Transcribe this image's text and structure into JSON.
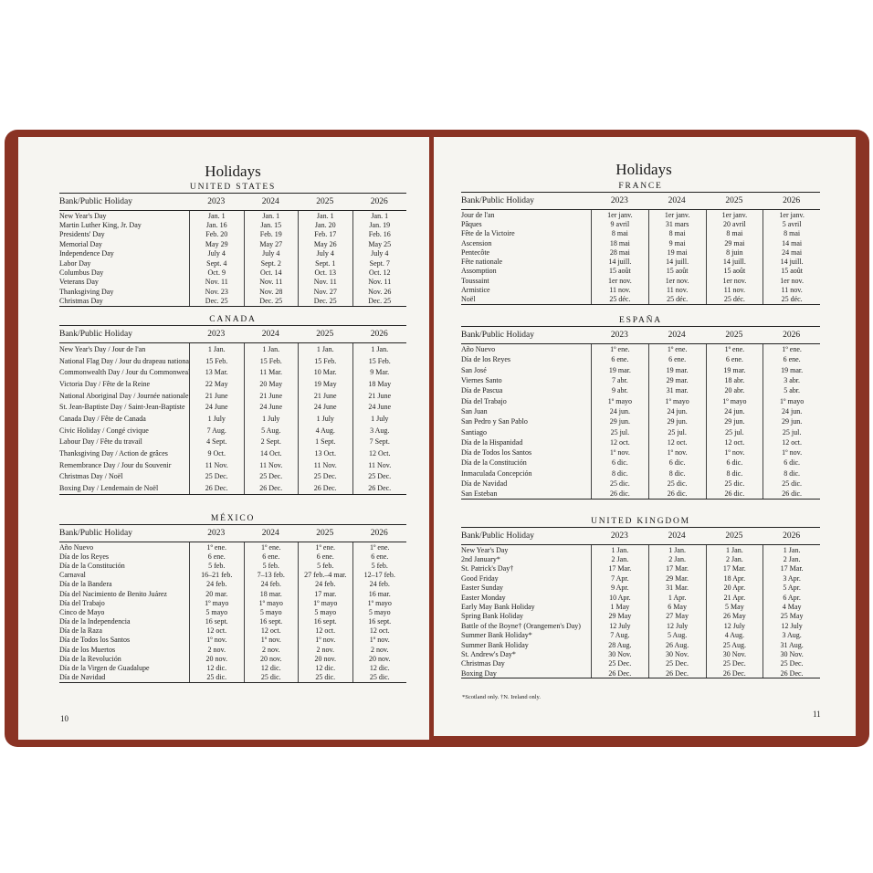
{
  "pages": [
    {
      "title": "Holidays",
      "page_number": "10",
      "sections": [
        {
          "country": "UNITED STATES",
          "column_header": "Bank/Public Holiday",
          "years": [
            "2023",
            "2024",
            "2025",
            "2026"
          ],
          "rows": [
            [
              "New Year's Day",
              "Jan. 1",
              "Jan. 1",
              "Jan. 1",
              "Jan. 1"
            ],
            [
              "Martin Luther King, Jr. Day",
              "Jan. 16",
              "Jan. 15",
              "Jan. 20",
              "Jan. 19"
            ],
            [
              "Presidents' Day",
              "Feb. 20",
              "Feb. 19",
              "Feb. 17",
              "Feb. 16"
            ],
            [
              "Memorial Day",
              "May 29",
              "May 27",
              "May 26",
              "May 25"
            ],
            [
              "Independence Day",
              "July 4",
              "July 4",
              "July 4",
              "July 4"
            ],
            [
              "Labor Day",
              "Sept. 4",
              "Sept. 2",
              "Sept. 1",
              "Sept. 7"
            ],
            [
              "Columbus Day",
              "Oct. 9",
              "Oct. 14",
              "Oct. 13",
              "Oct. 12"
            ],
            [
              "Veterans Day",
              "Nov. 11",
              "Nov. 11",
              "Nov. 11",
              "Nov. 11"
            ],
            [
              "Thanksgiving Day",
              "Nov. 23",
              "Nov. 28",
              "Nov. 27",
              "Nov. 26"
            ],
            [
              "Christmas Day",
              "Dec. 25",
              "Dec. 25",
              "Dec. 25",
              "Dec. 25"
            ]
          ]
        },
        {
          "country": "CANADA",
          "column_header": "Bank/Public Holiday",
          "years": [
            "2023",
            "2024",
            "2025",
            "2026"
          ],
          "rows": [
            [
              "New Year's Day / Jour de l'an",
              "1 Jan.",
              "1 Jan.",
              "1 Jan.",
              "1 Jan."
            ],
            [
              "National Flag Day / Jour du drapeau national",
              "15 Feb.",
              "15 Feb.",
              "15 Feb.",
              "15 Feb."
            ],
            [
              "Commonwealth Day / Jour du Commonwealth",
              "13 Mar.",
              "11 Mar.",
              "10 Mar.",
              "9 Mar."
            ],
            [
              "Victoria Day / Fête de la Reine",
              "22 May",
              "20 May",
              "19 May",
              "18 May"
            ],
            [
              "National Aboriginal Day / Journée nationale des Autochtones",
              "21 June",
              "21 June",
              "21 June",
              "21 June"
            ],
            [
              "St. Jean-Baptiste Day / Saint-Jean-Baptiste",
              "24 June",
              "24 June",
              "24 June",
              "24 June"
            ],
            [
              "Canada Day / Fête de Canada",
              "1 July",
              "1 July",
              "1 July",
              "1 July"
            ],
            [
              "Civic Holiday / Congé civique",
              "7 Aug.",
              "5 Aug.",
              "4 Aug.",
              "3 Aug."
            ],
            [
              "Labour Day / Fête du travail",
              "4 Sept.",
              "2 Sept.",
              "1 Sept.",
              "7 Sept."
            ],
            [
              "Thanksgiving Day / Action de grâces",
              "9 Oct.",
              "14 Oct.",
              "13 Oct.",
              "12 Oct."
            ],
            [
              "Remembrance Day / Jour du Souvenir",
              "11 Nov.",
              "11 Nov.",
              "11 Nov.",
              "11 Nov."
            ],
            [
              "Christmas Day / Noël",
              "25 Dec.",
              "25 Dec.",
              "25 Dec.",
              "25 Dec."
            ],
            [
              "Boxing Day / Lendemain de Noël",
              "26 Dec.",
              "26 Dec.",
              "26 Dec.",
              "26 Dec."
            ]
          ]
        },
        {
          "country": "MÉXICO",
          "column_header": "Bank/Public Holiday",
          "years": [
            "2023",
            "2024",
            "2025",
            "2026"
          ],
          "rows": [
            [
              "Año Nuevo",
              "1º ene.",
              "1º ene.",
              "1º ene.",
              "1º ene."
            ],
            [
              "Día de los Reyes",
              "6 ene.",
              "6 ene.",
              "6 ene.",
              "6 ene."
            ],
            [
              "Día de la Constitución",
              "5 feb.",
              "5 feb.",
              "5 feb.",
              "5 feb."
            ],
            [
              "Carnaval",
              "16–21 feb.",
              "7–13 feb.",
              "27 feb.–4 mar.",
              "12–17 feb."
            ],
            [
              "Día de la Bandera",
              "24 feb.",
              "24 feb.",
              "24 feb.",
              "24 feb."
            ],
            [
              "Día del Nacimiento de Benito Juárez",
              "20 mar.",
              "18 mar.",
              "17 mar.",
              "16 mar."
            ],
            [
              "Día del Trabajo",
              "1º mayo",
              "1º mayo",
              "1º mayo",
              "1º mayo"
            ],
            [
              "Cinco de Mayo",
              "5 mayo",
              "5 mayo",
              "5 mayo",
              "5 mayo"
            ],
            [
              "Día de la Independencia",
              "16 sept.",
              "16 sept.",
              "16 sept.",
              "16 sept."
            ],
            [
              "Día de la Raza",
              "12 oct.",
              "12 oct.",
              "12 oct.",
              "12 oct."
            ],
            [
              "Día de Todos los Santos",
              "1º nov.",
              "1º nov.",
              "1º nov.",
              "1º nov."
            ],
            [
              "Día de los Muertos",
              "2 nov.",
              "2 nov.",
              "2 nov.",
              "2 nov."
            ],
            [
              "Día de la Revolución",
              "20 nov.",
              "20 nov.",
              "20 nov.",
              "20 nov."
            ],
            [
              "Día de la Virgen de Guadalupe",
              "12 dic.",
              "12 dic.",
              "12 dic.",
              "12 dic."
            ],
            [
              "Día de Navidad",
              "25 dic.",
              "25 dic.",
              "25 dic.",
              "25 dic."
            ]
          ]
        }
      ]
    },
    {
      "title": "Holidays",
      "page_number": "11",
      "footnote": "*Scotland only.  †N. Ireland only.",
      "sections": [
        {
          "country": "FRANCE",
          "column_header": "Bank/Public Holiday",
          "years": [
            "2023",
            "2024",
            "2025",
            "2026"
          ],
          "rows": [
            [
              "Jour de l'an",
              "1er janv.",
              "1er janv.",
              "1er janv.",
              "1er janv."
            ],
            [
              "Pâques",
              "9 avril",
              "31 mars",
              "20 avril",
              "5 avril"
            ],
            [
              "Fête de la Victoire",
              "8 mai",
              "8 mai",
              "8 mai",
              "8 mai"
            ],
            [
              "Ascension",
              "18 mai",
              "9 mai",
              "29 mai",
              "14 mai"
            ],
            [
              "Pentecôte",
              "28 mai",
              "19 mai",
              "8 juin",
              "24 mai"
            ],
            [
              "Fête nationale",
              "14 juill.",
              "14 juill.",
              "14 juill.",
              "14 juill."
            ],
            [
              "Assomption",
              "15 août",
              "15 août",
              "15 août",
              "15 août"
            ],
            [
              "Toussaint",
              "1er nov.",
              "1er nov.",
              "1er nov.",
              "1er nov."
            ],
            [
              "Armistice",
              "11 nov.",
              "11 nov.",
              "11 nov.",
              "11 nov."
            ],
            [
              "Noël",
              "25 déc.",
              "25 déc.",
              "25 déc.",
              "25 déc."
            ]
          ]
        },
        {
          "country": "ESPAÑA",
          "column_header": "Bank/Public Holiday",
          "years": [
            "2023",
            "2024",
            "2025",
            "2026"
          ],
          "rows": [
            [
              "Año Nuevo",
              "1º ene.",
              "1º ene.",
              "1º ene.",
              "1º ene."
            ],
            [
              "Día de los Reyes",
              "6 ene.",
              "6 ene.",
              "6 ene.",
              "6 ene."
            ],
            [
              "San José",
              "19 mar.",
              "19 mar.",
              "19 mar.",
              "19 mar."
            ],
            [
              "Viernes Santo",
              "7 abr.",
              "29 mar.",
              "18 abr.",
              "3 abr."
            ],
            [
              "Día de Pascua",
              "9 abr.",
              "31 mar.",
              "20 abr.",
              "5 abr."
            ],
            [
              "Día del Trabajo",
              "1º mayo",
              "1º mayo",
              "1º mayo",
              "1º mayo"
            ],
            [
              "San Juan",
              "24 jun.",
              "24 jun.",
              "24 jun.",
              "24 jun."
            ],
            [
              "San Pedro y San Pablo",
              "29 jun.",
              "29 jun.",
              "29 jun.",
              "29 jun."
            ],
            [
              "Santiago",
              "25 jul.",
              "25 jul.",
              "25 jul.",
              "25 jul."
            ],
            [
              "Día de la Hispanidad",
              "12 oct.",
              "12 oct.",
              "12 oct.",
              "12 oct."
            ],
            [
              "Día de Todos los Santos",
              "1º nov.",
              "1º nov.",
              "1º nov.",
              "1º nov."
            ],
            [
              "Día de la Constitución",
              "6 dic.",
              "6 dic.",
              "6 dic.",
              "6 dic."
            ],
            [
              "Inmaculada Concepción",
              "8 dic.",
              "8 dic.",
              "8 dic.",
              "8 dic."
            ],
            [
              "Día de Navidad",
              "25 dic.",
              "25 dic.",
              "25 dic.",
              "25 dic."
            ],
            [
              "San Esteban",
              "26 dic.",
              "26 dic.",
              "26 dic.",
              "26 dic."
            ]
          ]
        },
        {
          "country": "UNITED KINGDOM",
          "column_header": "Bank/Public Holiday",
          "years": [
            "2023",
            "2024",
            "2025",
            "2026"
          ],
          "rows": [
            [
              "New Year's Day",
              "1 Jan.",
              "1 Jan.",
              "1 Jan.",
              "1 Jan."
            ],
            [
              "2nd January*",
              "2 Jan.",
              "2 Jan.",
              "2 Jan.",
              "2 Jan."
            ],
            [
              "St. Patrick's Day†",
              "17 Mar.",
              "17 Mar.",
              "17 Mar.",
              "17 Mar."
            ],
            [
              "Good Friday",
              "7 Apr.",
              "29 Mar.",
              "18 Apr.",
              "3 Apr."
            ],
            [
              "Easter Sunday",
              "9 Apr.",
              "31 Mar.",
              "20 Apr.",
              "5 Apr."
            ],
            [
              "Easter Monday",
              "10 Apr.",
              "1 Apr.",
              "21 Apr.",
              "6 Apr."
            ],
            [
              "Early May Bank Holiday",
              "1 May",
              "6 May",
              "5 May",
              "4 May"
            ],
            [
              "Spring Bank Holiday",
              "29 May",
              "27 May",
              "26 May",
              "25 May"
            ],
            [
              "Battle of the Boyne† (Orangemen's Day)",
              "12 July",
              "12 July",
              "12 July",
              "12 July"
            ],
            [
              "Summer Bank Holiday*",
              "7 Aug.",
              "5 Aug.",
              "4 Aug.",
              "3 Aug."
            ],
            [
              "Summer Bank Holiday",
              "28 Aug.",
              "26 Aug.",
              "25 Aug.",
              "31 Aug."
            ],
            [
              "St. Andrew's Day*",
              "30 Nov.",
              "30 Nov.",
              "30 Nov.",
              "30 Nov."
            ],
            [
              "Christmas Day",
              "25 Dec.",
              "25 Dec.",
              "25 Dec.",
              "25 Dec."
            ],
            [
              "Boxing Day",
              "26 Dec.",
              "26 Dec.",
              "26 Dec.",
              "26 Dec."
            ]
          ]
        }
      ]
    }
  ]
}
